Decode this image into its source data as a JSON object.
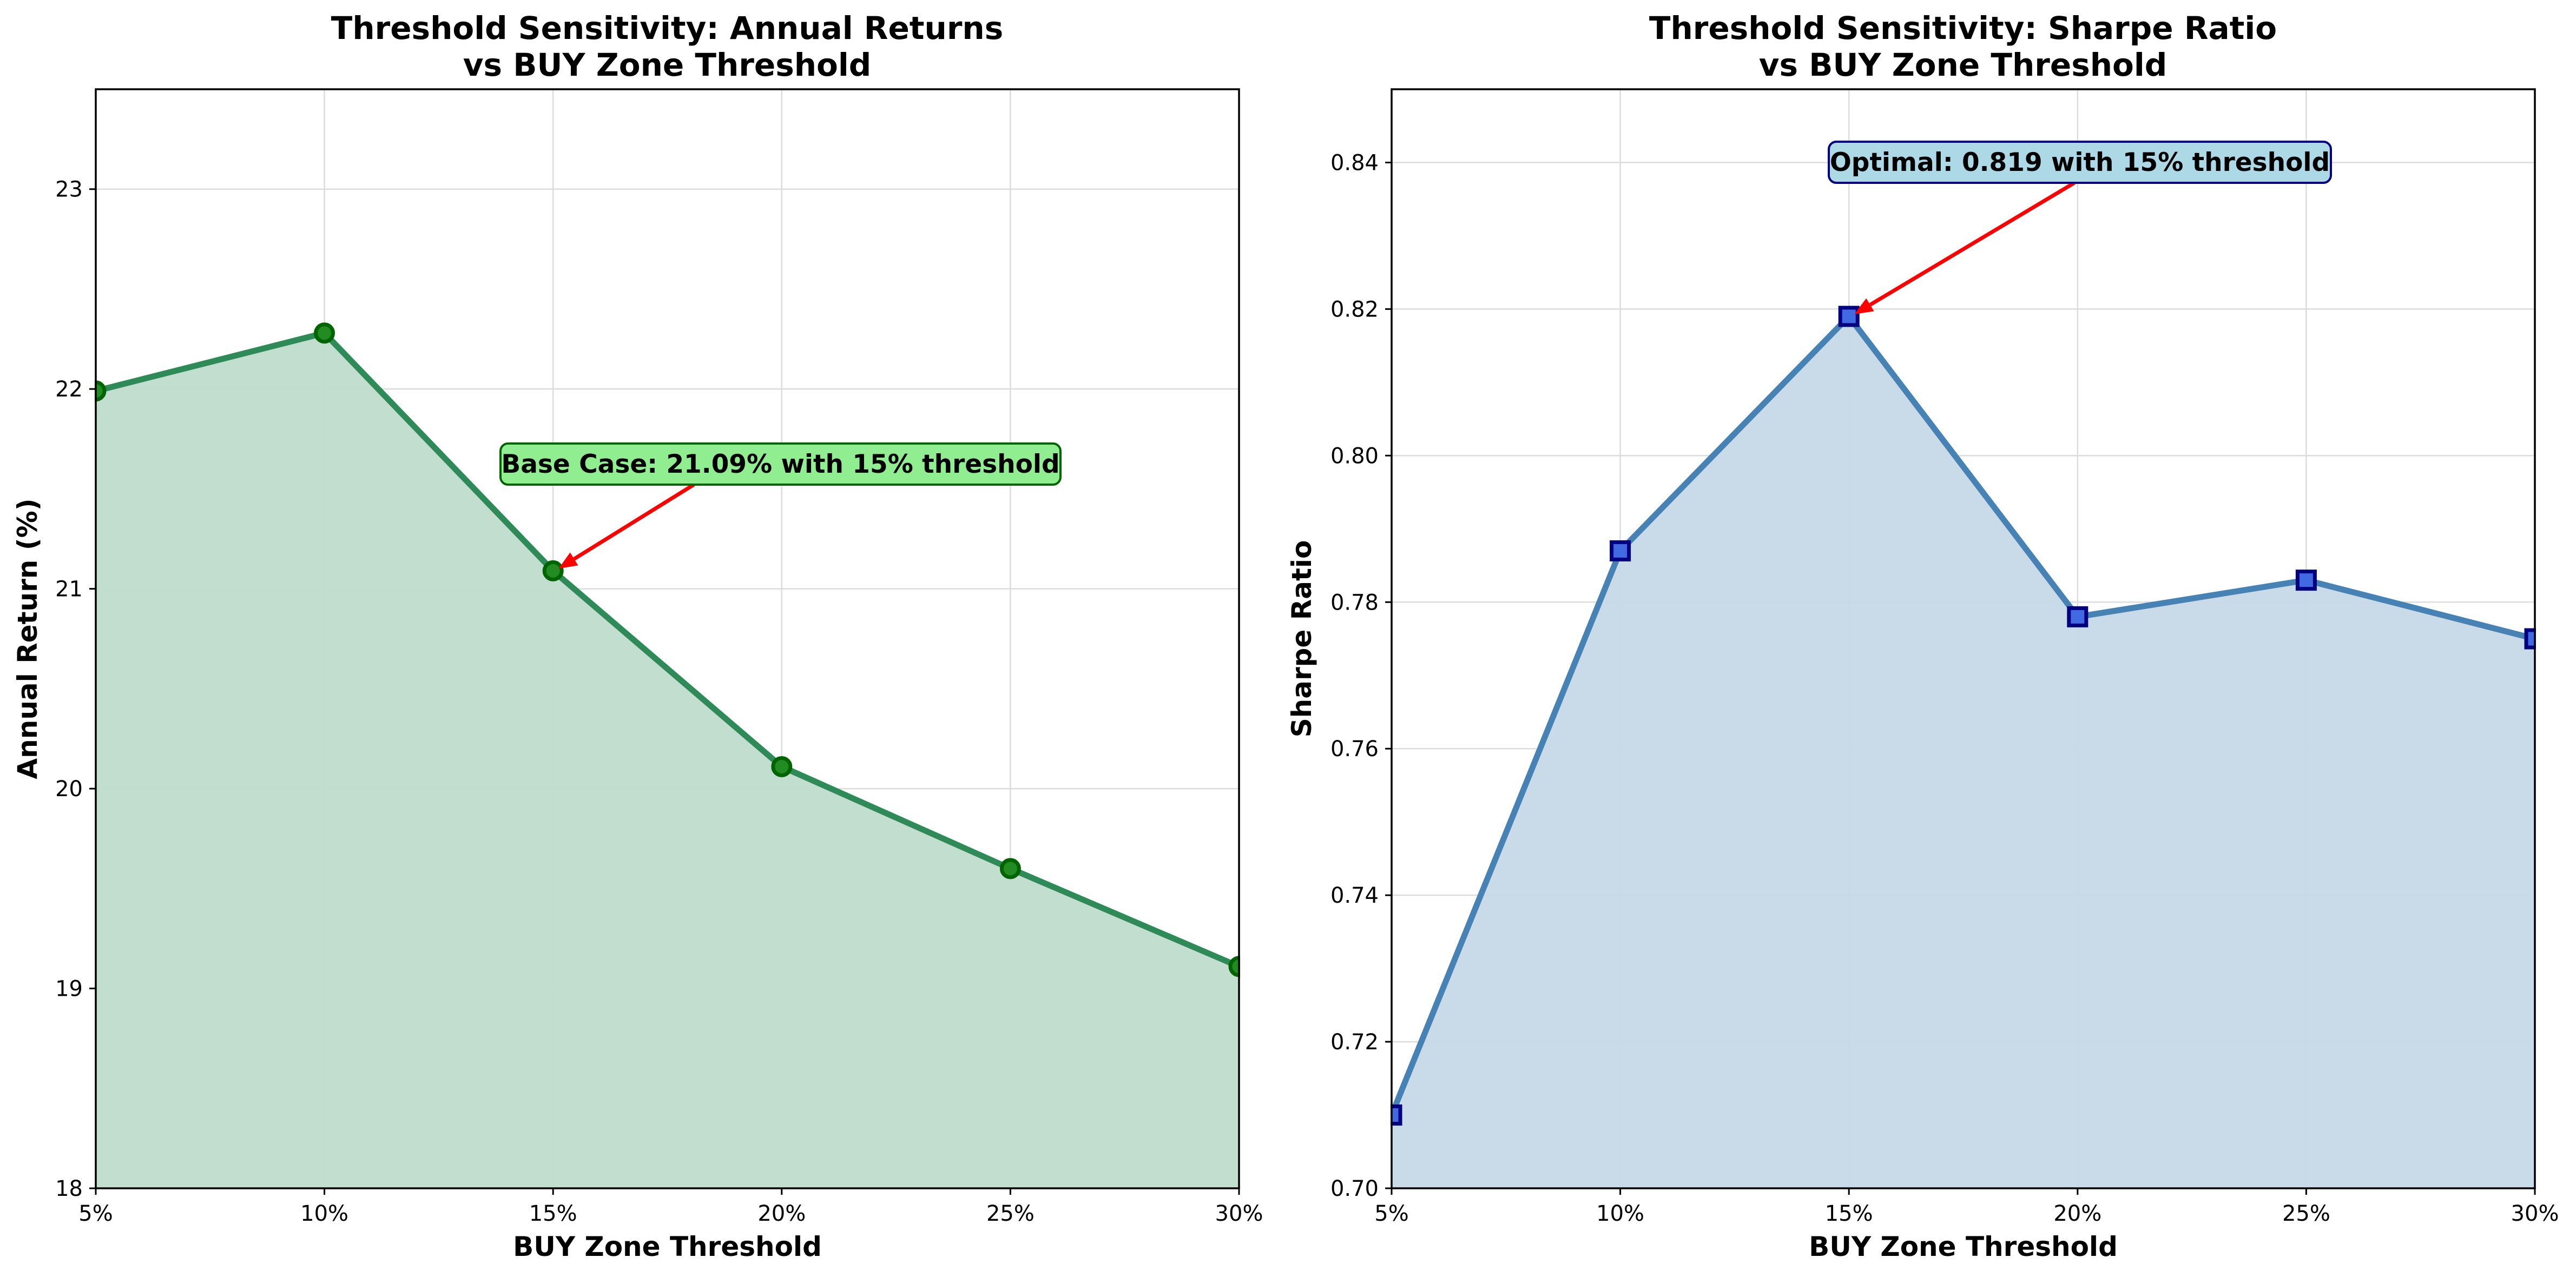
{
  "chart_data": [
    {
      "type": "line",
      "title_lines": [
        "Threshold Sensitivity: Annual Returns",
        "vs BUY Zone Threshold"
      ],
      "xlabel": "BUY Zone Threshold",
      "ylabel": "Annual Return (%)",
      "x": [
        5,
        10,
        15,
        20,
        25,
        30
      ],
      "x_tick_labels": [
        "5%",
        "10%",
        "15%",
        "20%",
        "25%",
        "30%"
      ],
      "values": [
        21.99,
        22.28,
        21.09,
        20.11,
        19.6,
        19.11
      ],
      "xlim": [
        5,
        30
      ],
      "ylim": [
        18,
        23.5
      ],
      "y_ticks": [
        18,
        19,
        20,
        21,
        22,
        23
      ],
      "y_tick_labels": [
        "18",
        "19",
        "20",
        "21",
        "22",
        "23"
      ],
      "grid": true,
      "marker": "circle",
      "filled_area": true,
      "colors": {
        "line": "#2e8b57",
        "fill": "#bfdccc",
        "marker_face": "#228b22",
        "marker_edge": "#006400",
        "arrow": "#ff0000",
        "annotation_bg": "#90ee90",
        "annotation_border": "#006400"
      },
      "annotation": {
        "text": "Base Case: 21.09% with 15% threshold",
        "x": 15,
        "y": 21.09,
        "text_x": 20,
        "text_y": 21.6
      }
    },
    {
      "type": "line",
      "title_lines": [
        "Threshold Sensitivity: Sharpe Ratio",
        "vs BUY Zone Threshold"
      ],
      "xlabel": "BUY Zone Threshold",
      "ylabel": "Sharpe Ratio",
      "x": [
        5,
        10,
        15,
        20,
        25,
        30
      ],
      "x_tick_labels": [
        "5%",
        "10%",
        "15%",
        "20%",
        "25%",
        "30%"
      ],
      "values": [
        0.71,
        0.787,
        0.819,
        0.778,
        0.783,
        0.775
      ],
      "xlim": [
        5,
        30
      ],
      "ylim": [
        0.7,
        0.85
      ],
      "y_ticks": [
        0.7,
        0.72,
        0.74,
        0.76,
        0.78,
        0.8,
        0.82,
        0.84
      ],
      "y_tick_labels": [
        "0.70",
        "0.72",
        "0.74",
        "0.76",
        "0.78",
        "0.80",
        "0.82",
        "0.84"
      ],
      "grid": true,
      "marker": "square",
      "filled_area": true,
      "colors": {
        "line": "#4682b4",
        "fill": "#c6d8e8",
        "marker_face": "#4169e1",
        "marker_edge": "#000080",
        "arrow": "#ff0000",
        "annotation_bg": "#add8e6",
        "annotation_border": "#000080"
      },
      "annotation": {
        "text": "Optimal: 0.819 with 15% threshold",
        "x": 15,
        "y": 0.819,
        "text_x": 20,
        "text_y": 0.84
      }
    }
  ]
}
